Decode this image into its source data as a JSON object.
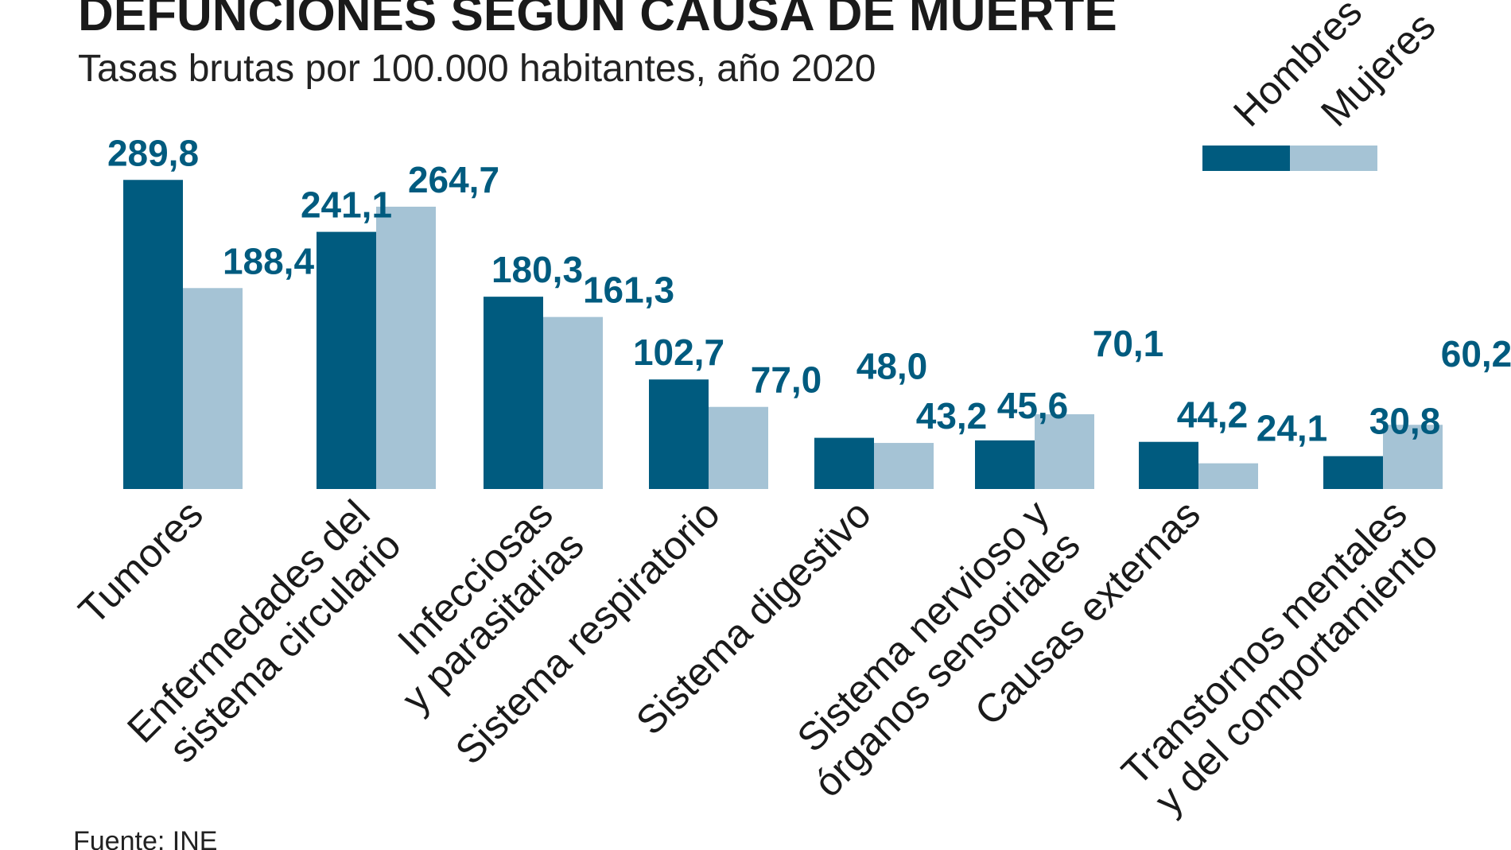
{
  "chart_data": {
    "type": "bar",
    "title": "DEFUNCIONES SEGÚN CAUSA DE MUERTE",
    "subtitle": "Tasas brutas por 100.000 habitantes, año 2020",
    "source": "Fuente: INE",
    "categories": [
      [
        "Tumores"
      ],
      [
        "Enfermedades del",
        "sistema circulario"
      ],
      [
        "Infecciosas",
        "y parasitarias"
      ],
      [
        "Sistema respiratorio"
      ],
      [
        "Sistema digestivo"
      ],
      [
        "Sistema nervioso y",
        "órganos sensoriales"
      ],
      [
        "Causas externas"
      ],
      [
        "Transtornos mentales",
        "y del comportamiento"
      ]
    ],
    "series": [
      {
        "name": "Hombres",
        "color": "#005b7f",
        "values": [
          289.8,
          241.1,
          180.3,
          102.7,
          48.0,
          45.6,
          44.2,
          30.8
        ],
        "labels": [
          "289,8",
          "241,1",
          "180,3",
          "102,7",
          "48,0",
          "45,6",
          "44,2",
          "30,8"
        ]
      },
      {
        "name": "Mujeres",
        "color": "#a5c3d5",
        "values": [
          188.4,
          264.7,
          161.3,
          77.0,
          43.2,
          70.1,
          24.1,
          60.2
        ],
        "labels": [
          "188,4",
          "264,7",
          "161,3",
          "77,0",
          "43,2",
          "70,1",
          "24,1",
          "60,2"
        ]
      }
    ],
    "ylim": [
      0,
      290
    ],
    "value_label_color": "#005b7f",
    "legend_position": "top-right",
    "grid": false
  }
}
